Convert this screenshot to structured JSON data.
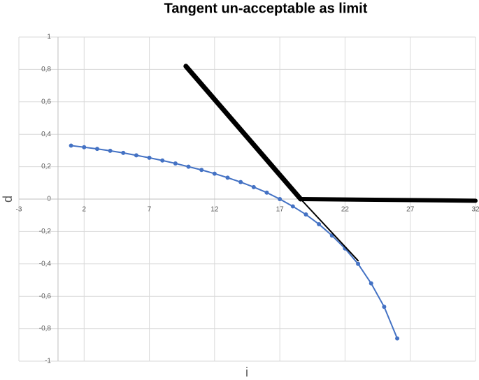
{
  "chart_data": {
    "type": "line",
    "title": "Tangent un-acceptable as limit",
    "xlabel": "i",
    "ylabel": "d",
    "xlim": [
      -3,
      32
    ],
    "xticks": [
      -3,
      2,
      7,
      12,
      17,
      22,
      27,
      32
    ],
    "ylim": [
      -1,
      1
    ],
    "yticks": [
      -1,
      {
        "value": -0.8,
        "label": "-0,8"
      },
      {
        "value": -0.6,
        "label": "-0,6"
      },
      {
        "value": -0.4,
        "label": "-0,4"
      },
      {
        "value": -0.2,
        "label": "-0,2"
      },
      0,
      {
        "value": 0.2,
        "label": "0,2"
      },
      {
        "value": 0.4,
        "label": "0,4"
      },
      {
        "value": 0.6,
        "label": "0,6"
      },
      {
        "value": 0.8,
        "label": "0,8"
      },
      1
    ],
    "grid": true,
    "series": [
      {
        "color": "#4472c4",
        "width": 2,
        "markers": true,
        "x": [
          1,
          2,
          3,
          4,
          5,
          6,
          7,
          8,
          9,
          10,
          11,
          12,
          13,
          14,
          15,
          16,
          17,
          18,
          19,
          20,
          21,
          22,
          23,
          24,
          25,
          26
        ],
        "values": [
          0.33,
          0.32,
          0.31,
          0.298,
          0.285,
          0.27,
          0.255,
          0.238,
          0.22,
          0.2,
          0.18,
          0.157,
          0.132,
          0.105,
          0.074,
          0.04,
          0.0,
          -0.045,
          -0.095,
          -0.155,
          -0.225,
          -0.305,
          -0.4,
          -0.52,
          -0.665,
          -0.86
        ]
      },
      {
        "color": "#000000",
        "width": 7,
        "markers": false,
        "x": [
          9.8,
          18.6
        ],
        "values": [
          0.82,
          0.0
        ]
      },
      {
        "color": "#000000",
        "width": 2,
        "markers": false,
        "x": [
          18.6,
          23
        ],
        "values": [
          0.0,
          -0.38
        ]
      },
      {
        "color": "#000000",
        "width": 6,
        "markers": false,
        "x": [
          18.6,
          32
        ],
        "values": [
          0.0,
          -0.01
        ]
      }
    ]
  }
}
